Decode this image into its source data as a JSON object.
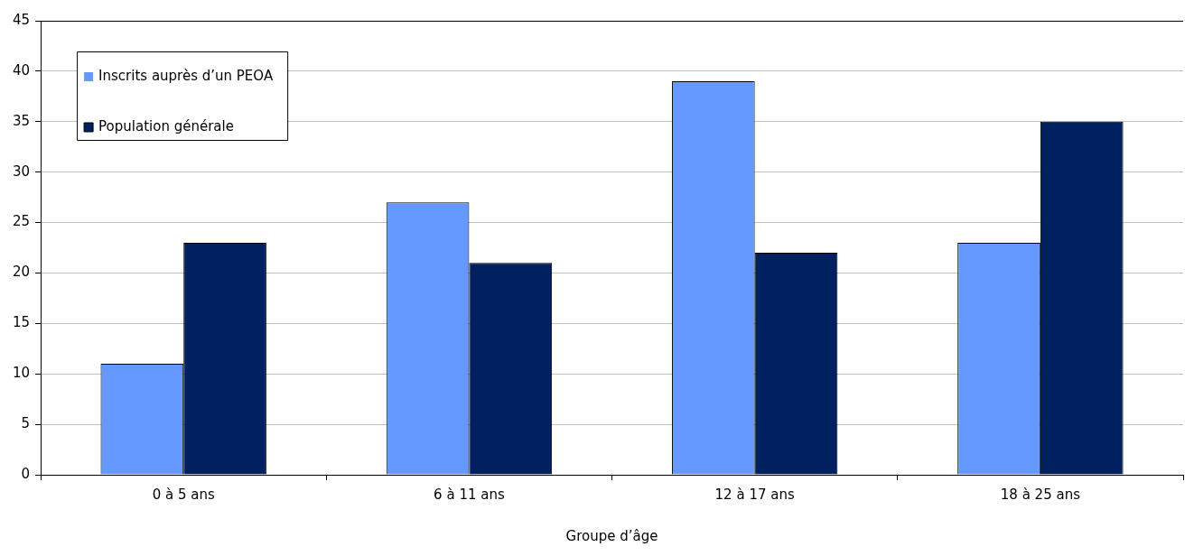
{
  "chart_data": {
    "type": "bar",
    "xlabel": "Groupe d’âge",
    "categories": [
      "0 à 5 ans",
      "6 à 11 ans",
      "12 à 17 ans",
      "18 à 25 ans"
    ],
    "series": [
      {
        "name": "Inscrits auprès d’un PEOA",
        "color": "#6699ff",
        "values": [
          11,
          27,
          39,
          23
        ]
      },
      {
        "name": "Population générale",
        "color": "#002060",
        "values": [
          23,
          21,
          22,
          35
        ]
      }
    ],
    "ylim": [
      0,
      45
    ],
    "yticks": [
      0,
      5,
      10,
      15,
      20,
      25,
      30,
      35,
      40,
      45
    ],
    "grid": "y",
    "legend": "top left"
  }
}
